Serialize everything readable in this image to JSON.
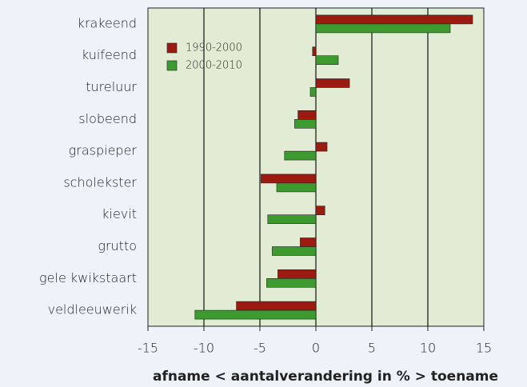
{
  "chart_data": {
    "type": "bar",
    "orientation": "horizontal",
    "xlabel": "afname < aantalverandering in % > toename",
    "categories": [
      "krakeend",
      "kuifeend",
      "tureluur",
      "slobeend",
      "graspieper",
      "scholekster",
      "kievit",
      "grutto",
      "gele kwikstaart",
      "veldleeuwerik"
    ],
    "series": [
      {
        "name": "1990-2000",
        "color": "#9b1b10",
        "values": [
          14,
          -0.3,
          3,
          -1.6,
          1,
          -4.9,
          0.8,
          -1.4,
          -3.4,
          -7.1
        ]
      },
      {
        "name": "2000-2010",
        "color": "#3c9a2e",
        "values": [
          12,
          2,
          -0.5,
          -1.9,
          -2.8,
          -3.5,
          -4.3,
          -3.9,
          -4.4,
          -10.8
        ]
      }
    ],
    "xlim": [
      -15,
      15
    ],
    "xticks": [
      -15,
      -10,
      -5,
      0,
      5,
      10,
      15
    ],
    "grid": true,
    "legend": "upper left"
  }
}
